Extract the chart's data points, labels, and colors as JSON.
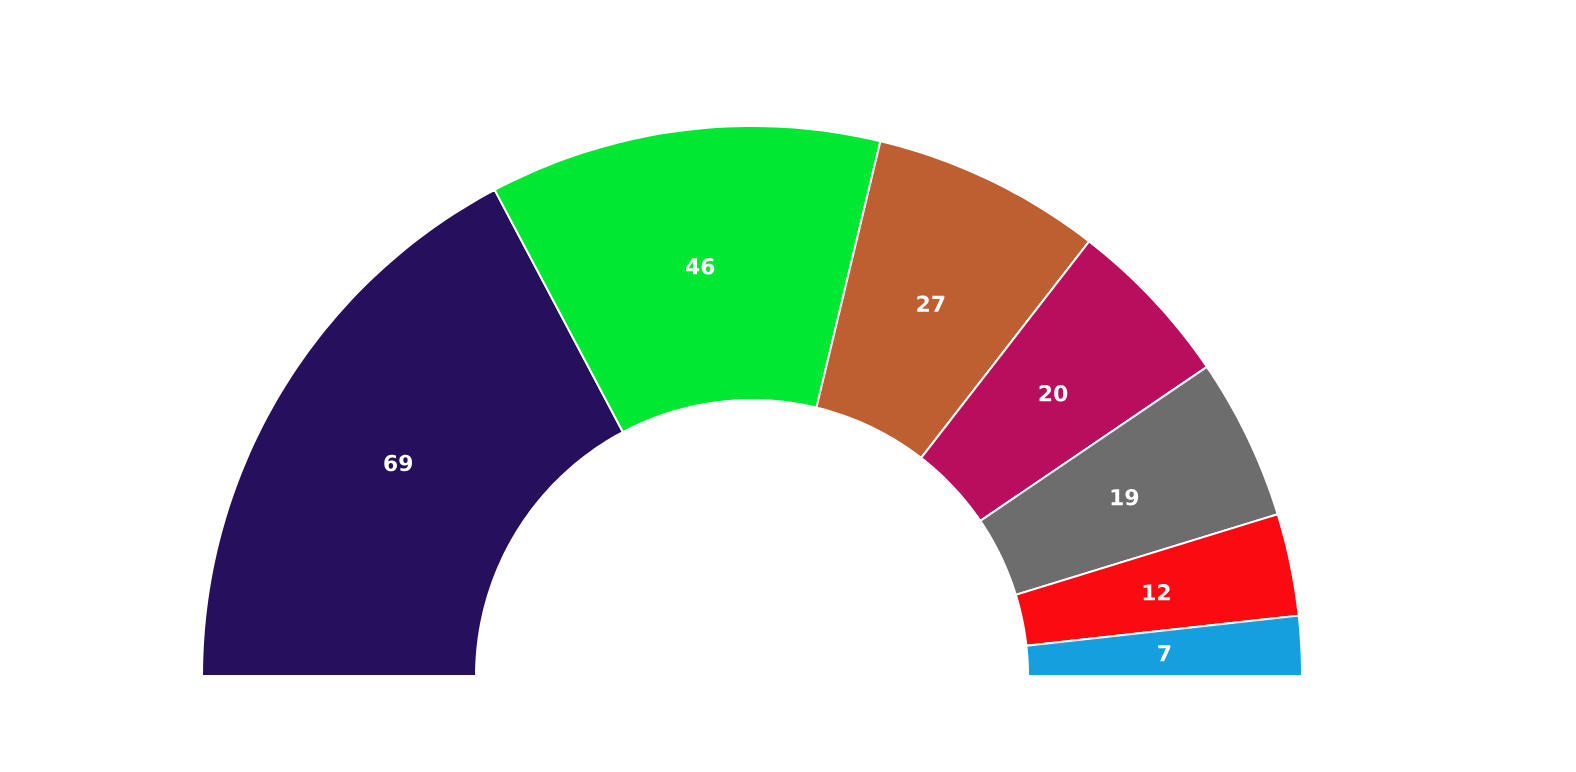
{
  "chart_data": {
    "type": "donut",
    "categories": [
      null,
      null,
      null,
      null,
      null,
      null,
      null
    ],
    "values": [
      69,
      46,
      27,
      20,
      19,
      12,
      7
    ],
    "colors": [
      "#26105e",
      "#00e832",
      "#bd5f31",
      "#b90d5e",
      "#6d6d6d",
      "#fb0b11",
      "#169fdf"
    ],
    "data_labels": true
  }
}
